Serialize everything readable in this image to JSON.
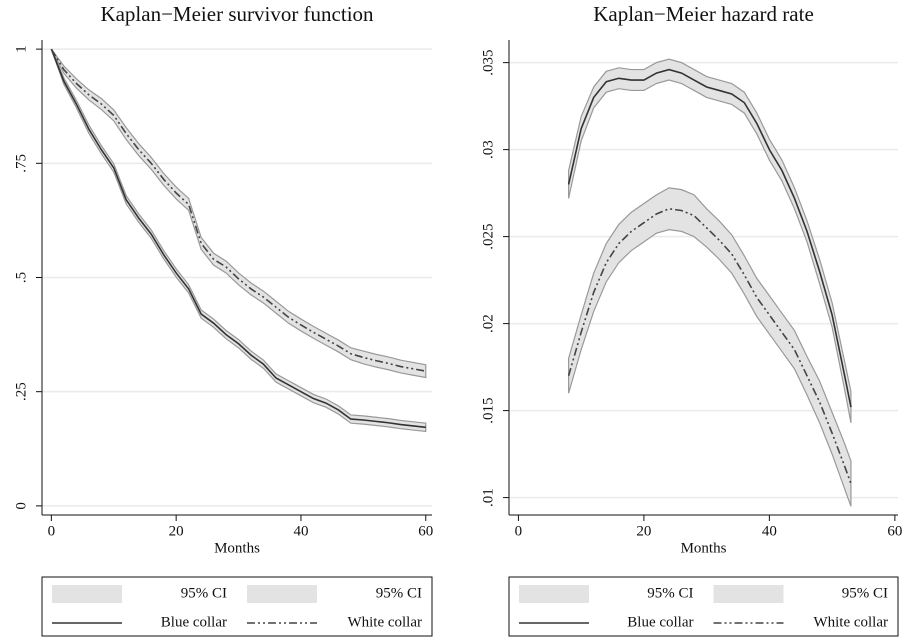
{
  "chart_data": [
    {
      "type": "survival",
      "title": "Kaplan−Meier survivor function",
      "xlabel": "Months",
      "xlim": [
        -1.5,
        61
      ],
      "xticks": [
        0,
        20,
        40,
        60
      ],
      "ylim": [
        -0.02,
        1.02
      ],
      "yticks": [
        0,
        {
          "value": 0.25,
          "label": ".25"
        },
        {
          "value": 0.5,
          "label": ".5"
        },
        {
          "value": 0.75,
          "label": ".75"
        },
        1
      ],
      "grid": true,
      "band_color": "#e3e3e3",
      "x": [
        0,
        2,
        4,
        6,
        8,
        10,
        12,
        14,
        16,
        18,
        20,
        22,
        24,
        26,
        28,
        30,
        32,
        34,
        36,
        38,
        40,
        42,
        44,
        46,
        48,
        50,
        52,
        54,
        56,
        58,
        60
      ],
      "series": [
        {
          "name": "Blue collar",
          "ci_name": "95% CI",
          "color": "#333333",
          "dash": "none",
          "values": [
            1,
            0.93,
            0.88,
            0.825,
            0.78,
            0.74,
            0.67,
            0.63,
            0.595,
            0.55,
            0.51,
            0.475,
            0.42,
            0.4,
            0.375,
            0.355,
            0.33,
            0.31,
            0.28,
            0.265,
            0.25,
            0.235,
            0.225,
            0.21,
            0.19,
            0.188,
            0.185,
            0.182,
            0.178,
            0.175,
            0.172
          ],
          "lower": [
            1,
            0.923,
            0.872,
            0.816,
            0.771,
            0.731,
            0.661,
            0.621,
            0.586,
            0.541,
            0.501,
            0.466,
            0.411,
            0.391,
            0.366,
            0.346,
            0.321,
            0.301,
            0.271,
            0.256,
            0.241,
            0.226,
            0.216,
            0.201,
            0.181,
            0.179,
            0.176,
            0.173,
            0.169,
            0.166,
            0.163
          ],
          "upper": [
            1,
            0.937,
            0.888,
            0.834,
            0.789,
            0.749,
            0.679,
            0.639,
            0.604,
            0.559,
            0.519,
            0.484,
            0.429,
            0.409,
            0.384,
            0.364,
            0.339,
            0.319,
            0.289,
            0.274,
            0.259,
            0.244,
            0.234,
            0.219,
            0.199,
            0.197,
            0.194,
            0.191,
            0.187,
            0.184,
            0.181
          ]
        },
        {
          "name": "White collar",
          "ci_name": "95% CI",
          "color": "#444444",
          "dash": "8 3 2 3 2 3",
          "values": [
            1,
            0.955,
            0.925,
            0.9,
            0.88,
            0.855,
            0.815,
            0.78,
            0.75,
            0.715,
            0.685,
            0.66,
            0.575,
            0.54,
            0.523,
            0.497,
            0.475,
            0.457,
            0.435,
            0.413,
            0.396,
            0.38,
            0.365,
            0.35,
            0.333,
            0.325,
            0.318,
            0.312,
            0.305,
            0.3,
            0.295
          ],
          "lower": [
            1,
            0.947,
            0.915,
            0.889,
            0.868,
            0.843,
            0.802,
            0.767,
            0.737,
            0.702,
            0.672,
            0.647,
            0.562,
            0.527,
            0.51,
            0.484,
            0.462,
            0.444,
            0.422,
            0.4,
            0.383,
            0.367,
            0.352,
            0.337,
            0.32,
            0.311,
            0.304,
            0.298,
            0.291,
            0.286,
            0.281
          ],
          "upper": [
            1,
            0.963,
            0.935,
            0.911,
            0.892,
            0.867,
            0.828,
            0.793,
            0.763,
            0.728,
            0.698,
            0.673,
            0.588,
            0.553,
            0.536,
            0.51,
            0.488,
            0.47,
            0.448,
            0.426,
            0.409,
            0.393,
            0.378,
            0.363,
            0.346,
            0.339,
            0.332,
            0.326,
            0.319,
            0.314,
            0.309
          ]
        }
      ]
    },
    {
      "type": "line",
      "title": "Kaplan−Meier hazard rate",
      "xlabel": "Months",
      "xlim": [
        -1.5,
        60.5
      ],
      "xticks": [
        0,
        20,
        40,
        60
      ],
      "ylim": [
        0.009,
        0.0363
      ],
      "yticks": [
        {
          "value": 0.01,
          "label": ".01"
        },
        {
          "value": 0.015,
          "label": ".015"
        },
        {
          "value": 0.02,
          "label": ".02"
        },
        {
          "value": 0.025,
          "label": ".025"
        },
        {
          "value": 0.03,
          "label": ".03"
        },
        {
          "value": 0.035,
          "label": ".035"
        }
      ],
      "grid": true,
      "band_color": "#e3e3e3",
      "x": [
        8,
        10,
        12,
        14,
        16,
        18,
        20,
        22,
        24,
        26,
        28,
        30,
        32,
        34,
        36,
        38,
        40,
        42,
        44,
        46,
        48,
        50,
        52,
        53
      ],
      "series": [
        {
          "name": "Blue collar",
          "ci_name": "95% CI",
          "color": "#333333",
          "dash": "none",
          "values": [
            0.028,
            0.0312,
            0.033,
            0.0339,
            0.0341,
            0.034,
            0.034,
            0.0344,
            0.0346,
            0.0344,
            0.034,
            0.0336,
            0.0334,
            0.0332,
            0.0327,
            0.0315,
            0.03,
            0.0288,
            0.0272,
            0.0253,
            0.023,
            0.0205,
            0.017,
            0.0152
          ],
          "lower": [
            0.0272,
            0.0305,
            0.0324,
            0.0333,
            0.0335,
            0.0334,
            0.0334,
            0.0338,
            0.034,
            0.0338,
            0.0334,
            0.033,
            0.0328,
            0.0326,
            0.0321,
            0.0309,
            0.0294,
            0.0282,
            0.0266,
            0.0247,
            0.0223,
            0.0198,
            0.0162,
            0.0143
          ],
          "upper": [
            0.0288,
            0.0319,
            0.0336,
            0.0345,
            0.0347,
            0.0346,
            0.0346,
            0.035,
            0.0352,
            0.035,
            0.0346,
            0.0342,
            0.034,
            0.0338,
            0.0333,
            0.0321,
            0.0306,
            0.0294,
            0.0278,
            0.0259,
            0.0237,
            0.0212,
            0.0178,
            0.0161
          ]
        },
        {
          "name": "White collar",
          "ci_name": "95% CI",
          "color": "#444444",
          "dash": "8 3 2 3 2 3",
          "values": [
            0.017,
            0.0195,
            0.0218,
            0.0235,
            0.0246,
            0.0253,
            0.0258,
            0.0263,
            0.0266,
            0.0265,
            0.0262,
            0.0255,
            0.0248,
            0.024,
            0.0228,
            0.0215,
            0.0205,
            0.0195,
            0.0185,
            0.017,
            0.0155,
            0.0137,
            0.0118,
            0.0108
          ],
          "lower": [
            0.016,
            0.0185,
            0.0207,
            0.0224,
            0.0235,
            0.0242,
            0.0247,
            0.0252,
            0.0254,
            0.0253,
            0.025,
            0.0244,
            0.0237,
            0.0229,
            0.0217,
            0.0204,
            0.0194,
            0.0184,
            0.0174,
            0.0159,
            0.0143,
            0.0125,
            0.0105,
            0.0095
          ],
          "upper": [
            0.018,
            0.0205,
            0.0229,
            0.0246,
            0.0257,
            0.0264,
            0.0269,
            0.0274,
            0.0278,
            0.0277,
            0.0274,
            0.0266,
            0.0259,
            0.0251,
            0.0239,
            0.0226,
            0.0216,
            0.0206,
            0.0196,
            0.0181,
            0.0167,
            0.0149,
            0.0131,
            0.0121
          ]
        }
      ]
    }
  ]
}
